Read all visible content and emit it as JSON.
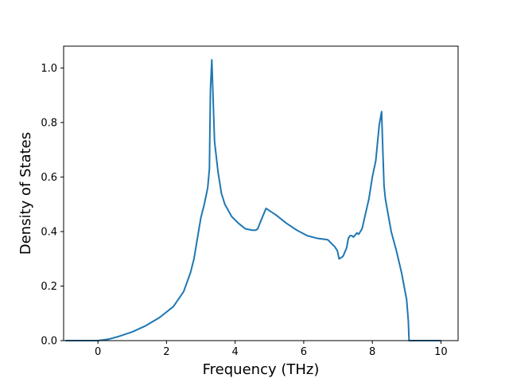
{
  "chart_data": {
    "type": "line",
    "title": "",
    "xlabel": "Frequency (THz)",
    "ylabel": "Density of States",
    "xlim": [
      -1.0,
      10.5
    ],
    "ylim": [
      0.0,
      1.08
    ],
    "xticks": [
      0,
      2,
      4,
      6,
      8,
      10
    ],
    "xtick_labels": [
      "0",
      "2",
      "4",
      "6",
      "8",
      "10"
    ],
    "yticks": [
      0.0,
      0.2,
      0.4,
      0.6,
      0.8,
      1.0
    ],
    "ytick_labels": [
      "0.0",
      "0.2",
      "0.4",
      "0.6",
      "0.8",
      "1.0"
    ],
    "grid": false,
    "legend": "none",
    "series": [
      {
        "color": "#1f77b4",
        "x": [
          -0.95,
          -0.5,
          0.0,
          0.3,
          0.6,
          1.0,
          1.4,
          1.8,
          2.2,
          2.5,
          2.7,
          2.8,
          3.0,
          3.1,
          3.15,
          3.2,
          3.25,
          3.28,
          3.32,
          3.4,
          3.5,
          3.6,
          3.7,
          3.9,
          4.1,
          4.3,
          4.5,
          4.6,
          4.66,
          4.72,
          4.9,
          5.2,
          5.5,
          5.8,
          6.1,
          6.4,
          6.7,
          6.9,
          6.98,
          7.03,
          7.1,
          7.15,
          7.25,
          7.3,
          7.35,
          7.4,
          7.45,
          7.55,
          7.6,
          7.7,
          7.8,
          7.9,
          8.0,
          8.1,
          8.2,
          8.27,
          8.3,
          8.34,
          8.38,
          8.45,
          8.55,
          8.7,
          8.85,
          9.0,
          9.05,
          9.07,
          9.1,
          10.0
        ],
        "y": [
          0.0,
          0.0,
          0.0,
          0.005,
          0.015,
          0.032,
          0.055,
          0.085,
          0.125,
          0.18,
          0.25,
          0.3,
          0.45,
          0.5,
          0.53,
          0.56,
          0.63,
          0.92,
          1.03,
          0.73,
          0.62,
          0.54,
          0.5,
          0.455,
          0.43,
          0.41,
          0.405,
          0.405,
          0.41,
          0.43,
          0.485,
          0.46,
          0.43,
          0.405,
          0.385,
          0.375,
          0.37,
          0.345,
          0.33,
          0.3,
          0.305,
          0.31,
          0.34,
          0.375,
          0.385,
          0.385,
          0.38,
          0.395,
          0.39,
          0.41,
          0.465,
          0.52,
          0.6,
          0.66,
          0.79,
          0.84,
          0.72,
          0.57,
          0.52,
          0.47,
          0.4,
          0.33,
          0.25,
          0.15,
          0.07,
          0.0,
          0.0,
          0.0
        ]
      }
    ]
  }
}
